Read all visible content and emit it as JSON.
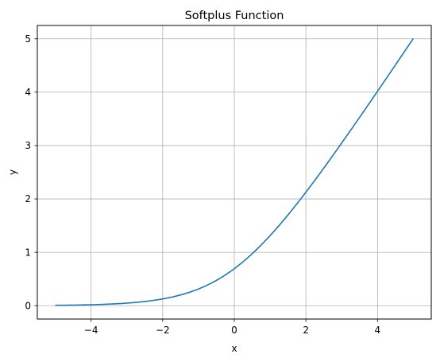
{
  "chart_data": {
    "type": "line",
    "title": "Softplus Function",
    "xlabel": "x",
    "ylabel": "y",
    "xlim": [
      -5.5,
      5.5
    ],
    "ylim": [
      -0.25,
      5.25
    ],
    "xticks": [
      -4,
      -2,
      0,
      2,
      4
    ],
    "xtick_labels": [
      "−4",
      "−2",
      "0",
      "2",
      "4"
    ],
    "yticks": [
      0,
      1,
      2,
      3,
      4,
      5
    ],
    "ytick_labels": [
      "0",
      "1",
      "2",
      "3",
      "4",
      "5"
    ],
    "grid": true,
    "series": [
      {
        "color": "#1f77b4",
        "x": [
          -5,
          -4.5,
          -4,
          -3.5,
          -3,
          -2.5,
          -2,
          -1.5,
          -1,
          -0.5,
          0,
          0.5,
          1,
          1.5,
          2,
          2.5,
          3,
          3.5,
          4,
          4.5,
          5
        ],
        "y": [
          0.0067,
          0.011,
          0.0181,
          0.0298,
          0.0486,
          0.0789,
          0.1269,
          0.2014,
          0.3133,
          0.4741,
          0.6931,
          0.9741,
          1.3133,
          1.7014,
          2.1269,
          2.5789,
          3.0486,
          3.5298,
          4.0181,
          4.511,
          5.0067
        ]
      }
    ]
  }
}
